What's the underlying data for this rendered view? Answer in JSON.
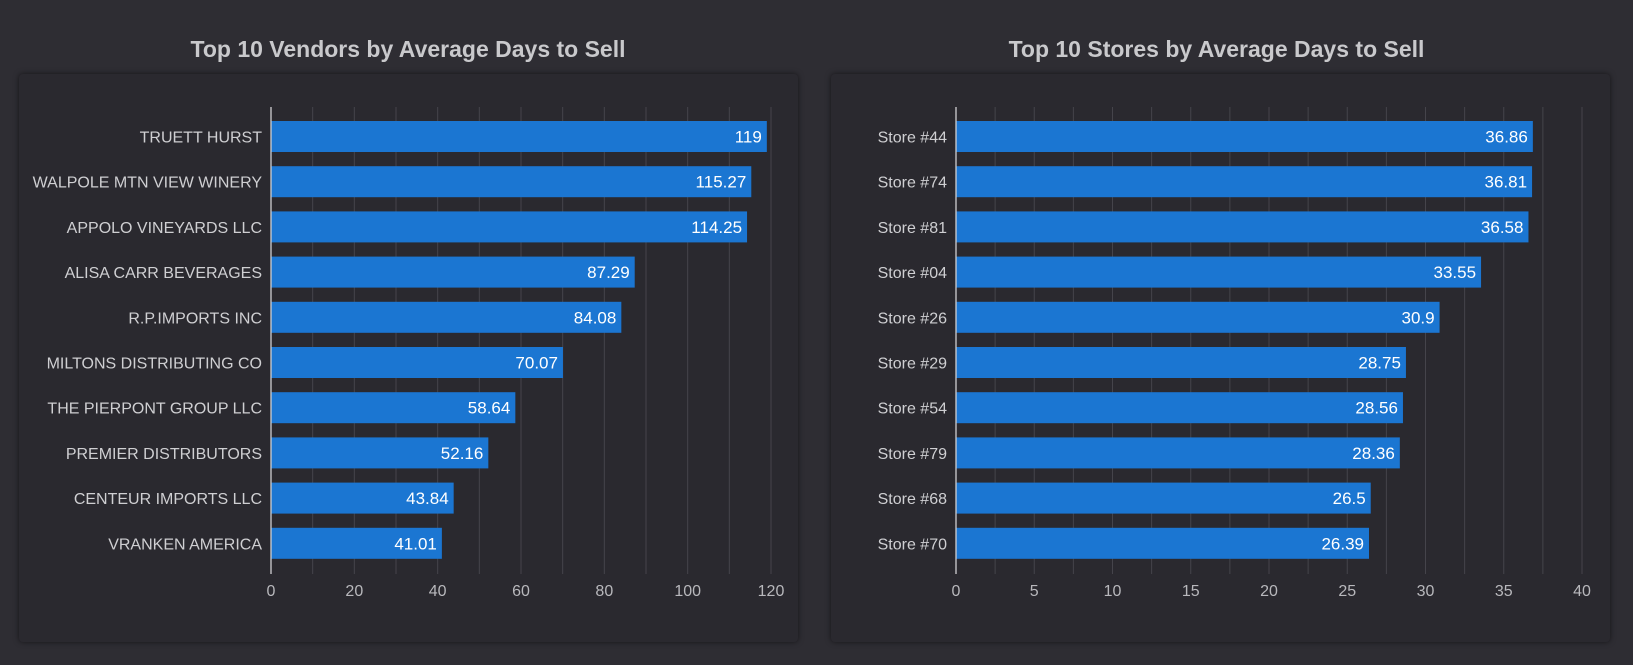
{
  "colors": {
    "background": "#2e2d33",
    "panel": "#2a292f",
    "bar": "#1b76d2",
    "grid": "#45444b",
    "axis": "#cfcfd2"
  },
  "chart_data": [
    {
      "type": "bar",
      "orientation": "horizontal",
      "title": "Top 10 Vendors by Average Days to Sell",
      "categories": [
        "TRUETT HURST",
        "WALPOLE MTN VIEW WINERY",
        "APPOLO VINEYARDS LLC",
        "ALISA CARR BEVERAGES",
        "R.P.IMPORTS INC",
        "MILTONS DISTRIBUTING CO",
        "THE PIERPONT GROUP LLC",
        "PREMIER DISTRIBUTORS",
        "CENTEUR IMPORTS LLC",
        "VRANKEN AMERICA"
      ],
      "values": [
        119,
        115.27,
        114.25,
        87.29,
        84.08,
        70.07,
        58.64,
        52.16,
        43.84,
        41.01
      ],
      "xlim": [
        0,
        120
      ],
      "xticks": [
        0,
        20,
        40,
        60,
        80,
        100,
        120
      ],
      "grid": true
    },
    {
      "type": "bar",
      "orientation": "horizontal",
      "title": "Top 10 Stores by Average Days to Sell",
      "categories": [
        "Store #44",
        "Store #74",
        "Store #81",
        "Store #04",
        "Store #26",
        "Store #29",
        "Store #54",
        "Store #79",
        "Store #68",
        "Store #70"
      ],
      "values": [
        36.86,
        36.81,
        36.58,
        33.55,
        30.9,
        28.75,
        28.56,
        28.36,
        26.5,
        26.39
      ],
      "xlim": [
        0,
        40
      ],
      "xticks": [
        0,
        5,
        10,
        15,
        20,
        25,
        30,
        35,
        40
      ],
      "grid": true
    }
  ]
}
